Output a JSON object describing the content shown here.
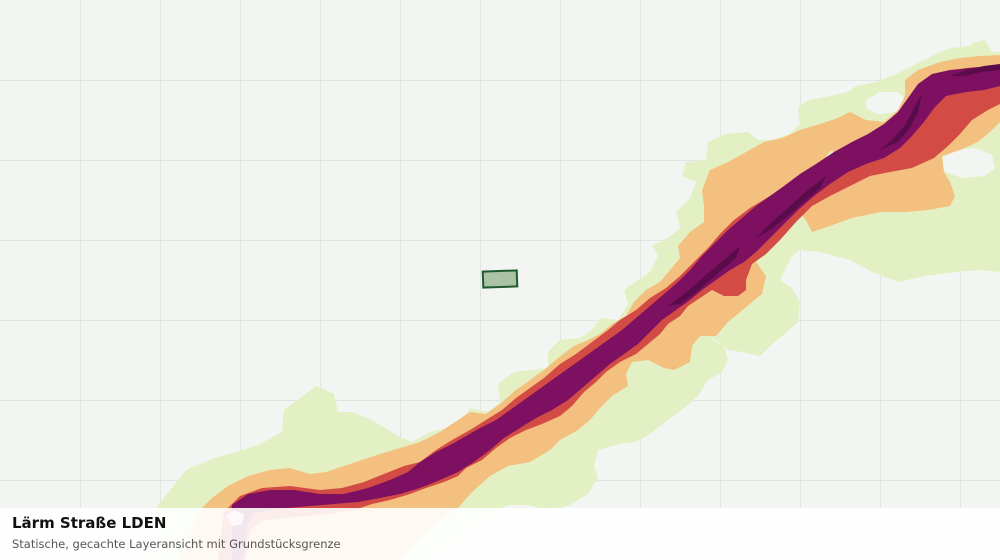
{
  "map": {
    "layer_title": "Lärm Straße LDEN",
    "layer_subtitle": "Statische, gecachte Layeransicht mit Grundstücksgrenze",
    "colors": {
      "background": "#f3f5f2",
      "grid": "#e1e4e0",
      "noise_band_1": "#e2f0c4",
      "noise_band_2": "#f4c07f",
      "noise_band_3": "#d24b44",
      "noise_band_4": "#7d1060",
      "noise_band_5": "#5a0c4a",
      "parcel_fill": "#a9c3a4",
      "parcel_stroke": "#1f5a30"
    },
    "features": [
      "road-noise-corridor",
      "parcel-boundary"
    ]
  }
}
